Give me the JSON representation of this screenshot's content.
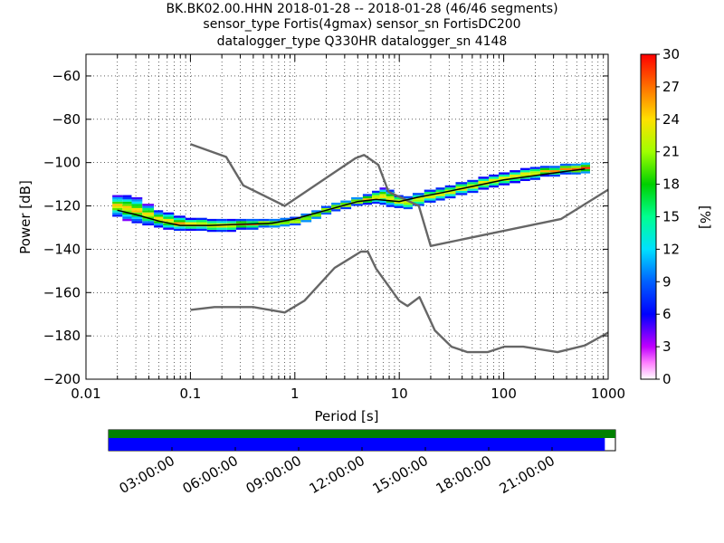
{
  "title_lines": [
    "BK.BK02.00.HHN   2018-01-28 -- 2018-01-28  (46/46 segments)",
    "sensor_type Fortis(4gmax) sensor_sn FortisDC200",
    "datalogger_type Q330HR datalogger_sn 4148"
  ],
  "chart_data": [
    {
      "type": "heatmap",
      "xlabel": "Period [s]",
      "ylabel": "Power [dB]",
      "x_scale": "log",
      "xlim": [
        0.01,
        1000
      ],
      "ylim": [
        -200,
        -50
      ],
      "x_ticks": [
        0.01,
        0.1,
        1,
        10,
        100,
        1000
      ],
      "x_tick_labels": [
        "0.01",
        "0.1",
        "1",
        "10",
        "100",
        "1000"
      ],
      "y_ticks": [
        -200,
        -180,
        -160,
        -140,
        -120,
        -100,
        -80,
        -60
      ],
      "y_tick_labels": [
        "−200",
        "−180",
        "−160",
        "−140",
        "−120",
        "−100",
        "−80",
        "−60"
      ],
      "grid": true,
      "colorbar": {
        "label": "[%]",
        "range": [
          0,
          30
        ],
        "ticks": [
          "0",
          "3",
          "6",
          "9",
          "12",
          "15",
          "18",
          "21",
          "24",
          "27",
          "30"
        ]
      },
      "psd_mode_line": {
        "color": "#000000",
        "x": [
          0.02,
          0.03,
          0.05,
          0.08,
          0.15,
          0.3,
          0.6,
          1,
          2,
          4,
          6,
          10,
          15,
          25,
          50,
          100,
          200,
          400,
          600
        ],
        "y": [
          -122,
          -124,
          -127,
          -129,
          -129,
          -128.5,
          -128,
          -126,
          -122,
          -118,
          -117,
          -118,
          -116,
          -114,
          -111,
          -108,
          -106,
          -104,
          -103
        ]
      },
      "psd_density": {
        "periods": [
          0.02,
          0.025,
          0.03,
          0.04,
          0.05,
          0.06,
          0.08,
          0.1,
          0.13,
          0.16,
          0.2,
          0.25,
          0.3,
          0.4,
          0.5,
          0.65,
          0.8,
          1,
          1.3,
          1.6,
          2,
          2.5,
          3,
          4,
          5,
          6,
          7,
          8,
          10,
          12,
          15,
          20,
          25,
          30,
          40,
          50,
          65,
          80,
          100,
          130,
          160,
          200,
          250,
          300,
          400,
          500,
          600
        ],
        "center_db": [
          -120,
          -121,
          -122,
          -124,
          -126,
          -127,
          -128,
          -128.5,
          -128.5,
          -129,
          -129,
          -129,
          -128.5,
          -128.5,
          -128,
          -128,
          -127.5,
          -127,
          -125.5,
          -124,
          -122,
          -120.5,
          -119.5,
          -118,
          -117,
          -116,
          -115.5,
          -116.5,
          -118,
          -118.5,
          -117,
          -115.5,
          -114.5,
          -113.5,
          -112,
          -111,
          -109.5,
          -108.5,
          -107.5,
          -106.5,
          -105.5,
          -105,
          -104,
          -104,
          -103,
          -103,
          -102.5
        ],
        "half_width_db": [
          5,
          6,
          6,
          5,
          4,
          4,
          3.5,
          3,
          3,
          3,
          3,
          3,
          2.5,
          2.5,
          2,
          2,
          2,
          2,
          2,
          2,
          2,
          2,
          2,
          2,
          2.5,
          3,
          4,
          4,
          3,
          3,
          3,
          3,
          3,
          3,
          3,
          3,
          3,
          3,
          3,
          3,
          3,
          3,
          2.5,
          2.5,
          2.5,
          2.5,
          2.5
        ]
      },
      "noise_models": [
        {
          "name": "NHNM",
          "color": "#666666",
          "x": [
            0.1,
            0.22,
            0.32,
            0.8,
            3.8,
            4.6,
            6.3,
            7.9,
            15.4,
            20,
            354.8,
            1000
          ],
          "y": [
            -91.5,
            -97.4,
            -110.5,
            -120,
            -98,
            -96.5,
            -101,
            -113.5,
            -120,
            -138.5,
            -126,
            -112.5
          ]
        },
        {
          "name": "NLNM",
          "color": "#666666",
          "x": [
            0.1,
            0.17,
            0.4,
            0.8,
            1.24,
            2.4,
            4.3,
            5,
            6,
            10,
            12,
            15.6,
            21.9,
            31.6,
            45,
            70,
            101,
            154,
            328,
            600,
            1000
          ],
          "y": [
            -168,
            -166.7,
            -166.7,
            -169.2,
            -163.7,
            -148.6,
            -141.1,
            -141.1,
            -149,
            -163.8,
            -166.2,
            -162.1,
            -177.5,
            -185,
            -187.5,
            -187.5,
            -185,
            -185,
            -187.5,
            -184.4,
            -178.5
          ]
        }
      ]
    },
    {
      "type": "timeline",
      "x_tick_labels": [
        "03:00:00",
        "06:00:00",
        "09:00:00",
        "12:00:00",
        "15:00:00",
        "18:00:00",
        "21:00:00"
      ],
      "x_ticks_hours": [
        3,
        6,
        9,
        12,
        15,
        18,
        21
      ],
      "range_hours": [
        0,
        24
      ],
      "bars": [
        {
          "color": "#008000",
          "start_hours": 0,
          "end_hours": 24
        },
        {
          "color": "#0000ff",
          "start_hours": 0,
          "end_hours": 23.5
        }
      ]
    }
  ]
}
